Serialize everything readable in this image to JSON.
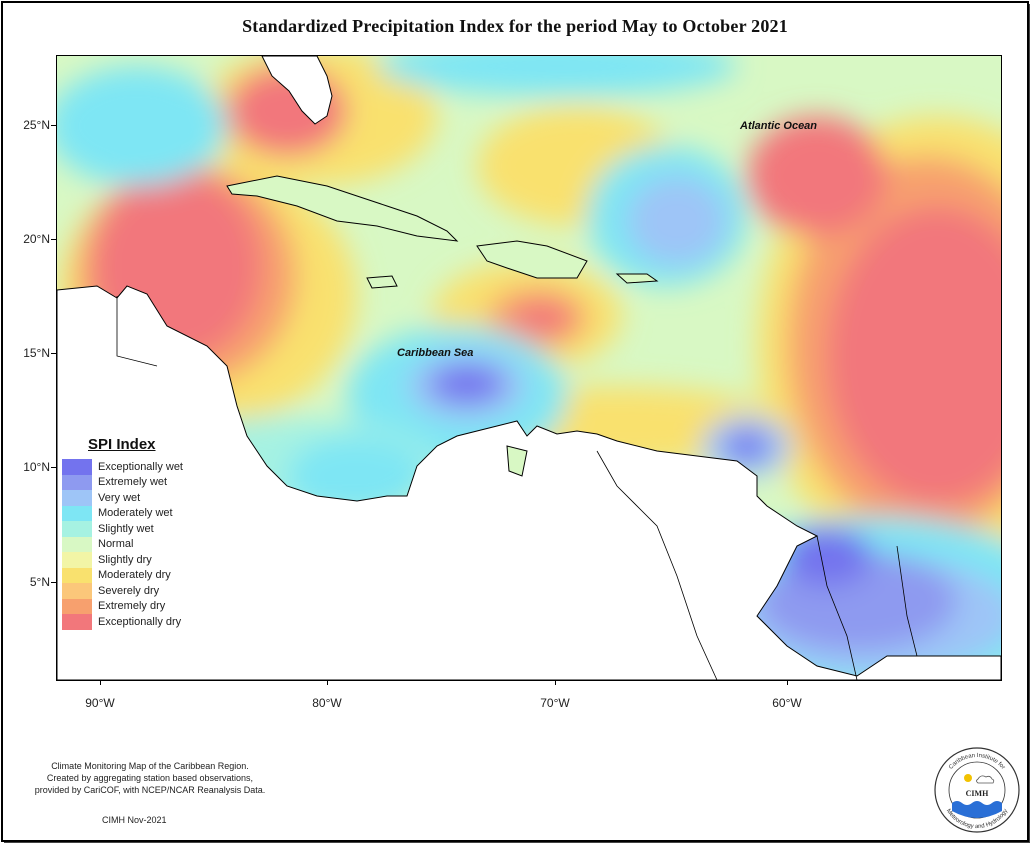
{
  "title": "Standardized Precipitation Index for the period May to October 2021",
  "ocean_labels": {
    "atlantic": "Atlantic Ocean",
    "caribbean": "Caribbean Sea"
  },
  "axis": {
    "lat_labels": [
      "25°N",
      "20°N",
      "15°N",
      "10°N",
      "5°N"
    ],
    "lon_labels": [
      "90°W",
      "80°W",
      "70°W",
      "60°W"
    ]
  },
  "legend": {
    "title": "SPI Index",
    "items": [
      {
        "label": "Exceptionally wet",
        "color": "#7373ee"
      },
      {
        "label": "Extremely wet",
        "color": "#8e9af0"
      },
      {
        "label": "Very wet",
        "color": "#9ec5f7"
      },
      {
        "label": "Moderately wet",
        "color": "#7ee6f4"
      },
      {
        "label": "Slightly wet",
        "color": "#a6f2e2"
      },
      {
        "label": "Normal",
        "color": "#d8f8c4"
      },
      {
        "label": "Slightly dry",
        "color": "#f2f5a6"
      },
      {
        "label": "Moderately dry",
        "color": "#f9e16e"
      },
      {
        "label": "Severely dry",
        "color": "#fbc77a"
      },
      {
        "label": "Extremely dry",
        "color": "#f7a06e"
      },
      {
        "label": "Exceptionally dry",
        "color": "#f2777b"
      }
    ]
  },
  "footer": {
    "description_lines": [
      "Climate Monitoring Map of the Caribbean Region.",
      "Created by aggregating station based observations,",
      "provided by CariCOF, with NCEP/NCAR Reanalysis Data."
    ],
    "credit": "CIMH Nov-2021"
  },
  "logo": {
    "text": "CIMH",
    "ring_top": "Caribbean Institute for",
    "ring_bottom": "Meteorology and Hydrology"
  }
}
